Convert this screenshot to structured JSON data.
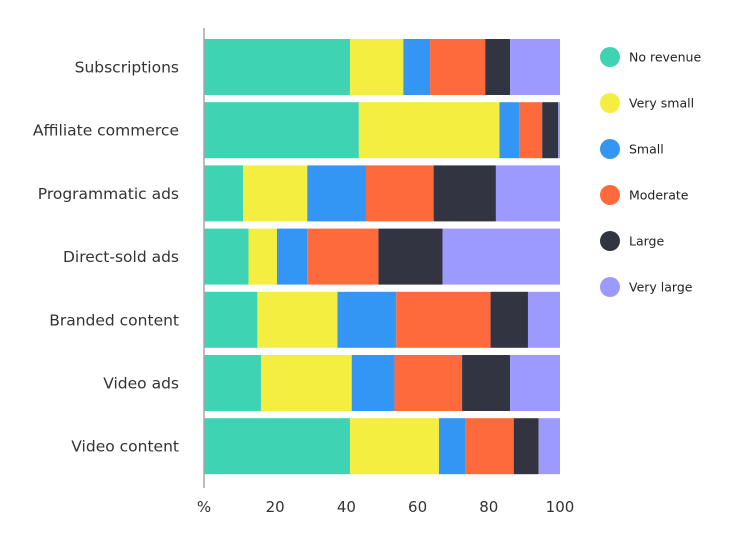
{
  "chart_data": {
    "type": "bar",
    "orientation": "horizontal",
    "stacked": true,
    "categories": [
      "Subscriptions",
      "Affiliate commerce",
      "Programmatic ads",
      "Direct-sold ads",
      "Branded content",
      "Video ads",
      "Video content"
    ],
    "series": [
      {
        "name": "No revenue",
        "color": "#3dd3b3",
        "values": [
          41,
          43.5,
          11,
          12.5,
          15,
          16,
          41
        ]
      },
      {
        "name": "Very small",
        "color": "#f3ee3f",
        "values": [
          15,
          39.5,
          18,
          8,
          22.5,
          25.5,
          25
        ]
      },
      {
        "name": "Small",
        "color": "#3396f5",
        "values": [
          7.5,
          5.5,
          16.5,
          8.5,
          16.5,
          12,
          7.5
        ]
      },
      {
        "name": "Moderate",
        "color": "#ff6a3d",
        "values": [
          15.5,
          6.5,
          19,
          20,
          26.5,
          19,
          13.5
        ]
      },
      {
        "name": "Large",
        "color": "#323441",
        "values": [
          7,
          4.5,
          17.5,
          18,
          10.5,
          13.5,
          7
        ]
      },
      {
        "name": "Very large",
        "color": "#9d9aff",
        "values": [
          14,
          0.5,
          18,
          33,
          9,
          14,
          6
        ]
      }
    ],
    "x_ticks": [
      "%",
      "20",
      "40",
      "60",
      "80",
      "100"
    ],
    "xlim": [
      0,
      100
    ],
    "legend_position": "right",
    "grid": false
  }
}
